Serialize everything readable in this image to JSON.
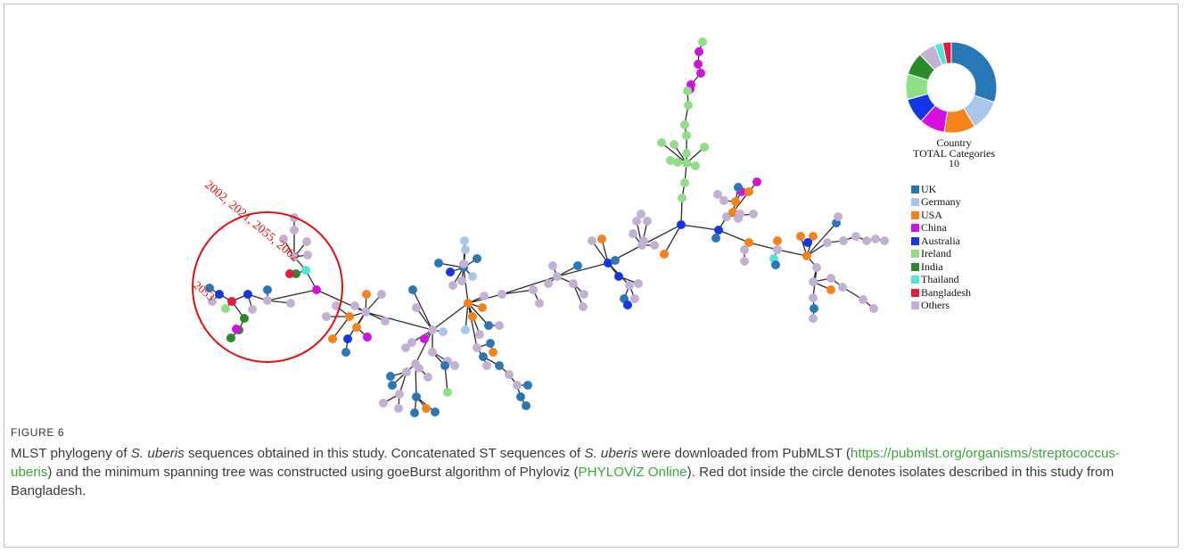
{
  "figure": {
    "label": "FIGURE 6",
    "caption": {
      "t1": "MLST phylogeny of ",
      "species1": "S. uberis",
      "t2": " sequences obtained in this study. Concatenated ST sequences of ",
      "species2": "S. uberis",
      "t3": " were downloaded from PubMLST (",
      "link1": "https://pubmlst.org/organisms/streptococcus-uberis",
      "t4": ") and the minimum spanning tree was constructed using goeBurst algorithm of Phyloviz (",
      "link2": "PHYLOViZ Online",
      "t5": "). Red dot inside the circle denotes isolates described in this study from Bangladesh."
    }
  },
  "donut": {
    "title": "Country",
    "subtitle": "TOTAL Categories",
    "count": "10",
    "slices": [
      {
        "name": "UK",
        "value": 30,
        "color": "#2878b8"
      },
      {
        "name": "Germany",
        "value": 11,
        "color": "#a9c6e8"
      },
      {
        "name": "USA",
        "value": 11,
        "color": "#f7821a"
      },
      {
        "name": "China",
        "value": 9,
        "color": "#d60fe0"
      },
      {
        "name": "Australia",
        "value": 9,
        "color": "#1436e8"
      },
      {
        "name": "Ireland",
        "value": 9,
        "color": "#8fdf86"
      },
      {
        "name": "India",
        "value": 8,
        "color": "#2a8a2a"
      },
      {
        "name": "Others",
        "value": 6,
        "color": "#c5b0d5"
      },
      {
        "name": "Thailand",
        "value": 3,
        "color": "#4fe6d8"
      },
      {
        "name": "Bangladesh",
        "value": 3,
        "color": "#e61a3c"
      }
    ]
  },
  "legend": [
    {
      "name": "UK",
      "color": "#2878b8"
    },
    {
      "name": "Germany",
      "color": "#a9c6e8"
    },
    {
      "name": "USA",
      "color": "#f7821a"
    },
    {
      "name": "China",
      "color": "#d60fe0"
    },
    {
      "name": "Australia",
      "color": "#1436e8"
    },
    {
      "name": "Ireland",
      "color": "#8fdf86"
    },
    {
      "name": "India",
      "color": "#2a8a2a"
    },
    {
      "name": "Thailand",
      "color": "#4fe6d8"
    },
    {
      "name": "Bangladesh",
      "color": "#e61a3c"
    },
    {
      "name": "Others",
      "color": "#c5b0d5"
    }
  ],
  "annotations": {
    "cluster_label": "2002, 2021, 2055, 2062",
    "st_label": "2053",
    "highlight_color": "#e01010"
  },
  "colors": {
    "edge": "#2a2a2a",
    "link": "#3aa637",
    "text": "#3a3a3a"
  }
}
